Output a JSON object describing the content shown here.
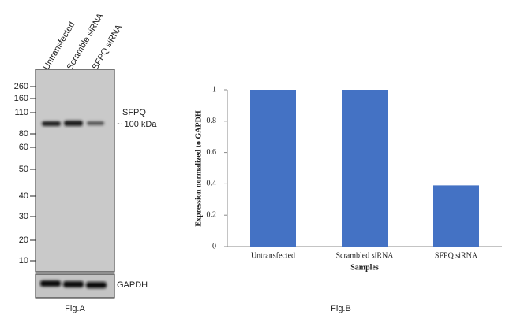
{
  "chart_data": {
    "type": "bar",
    "categories": [
      "Untransfected",
      "Scrambled siRNA",
      "SFPQ siRNA"
    ],
    "values": [
      1,
      1,
      0.39
    ],
    "color": "#4472c4",
    "ylim": [
      0,
      1
    ],
    "yticks": [
      0,
      0.2,
      0.4,
      0.6,
      0.8,
      1
    ],
    "y_label": "Expression normalized to GAPDH",
    "x_label": "Samples",
    "caption": "Fig.B"
  },
  "blot": {
    "lanes": [
      "Untransfected",
      "Scramble siRNA",
      "SFPQ siRNA"
    ],
    "markers": [
      260,
      160,
      110,
      80,
      60,
      50,
      40,
      30,
      20,
      10
    ],
    "target": "SFPQ",
    "size": "~ 100 kDa",
    "loading_control": "GAPDH",
    "caption": "Fig.A"
  }
}
